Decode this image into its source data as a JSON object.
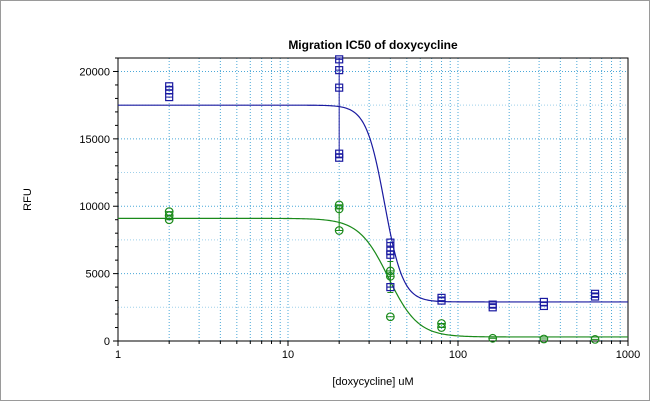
{
  "chart_data": {
    "type": "scatter",
    "title": "Migration IC50 of doxycycline",
    "xlabel": "[doxycycline] uM",
    "ylabel": "RFU",
    "xscale": "log",
    "xlim": [
      1,
      1000
    ],
    "ylim": [
      0,
      21000
    ],
    "x_ticks": [
      1,
      10,
      100,
      1000
    ],
    "x_tick_labels": [
      "1",
      "10",
      "100",
      "1000"
    ],
    "y_ticks": [
      0,
      5000,
      10000,
      15000,
      20000
    ],
    "y_tick_labels": [
      "0",
      "5000",
      "10000",
      "15000",
      "20000"
    ],
    "grid": true,
    "legend": "none",
    "series": [
      {
        "marker": "square",
        "color": "#1a1aa0",
        "points": [
          [
            2,
            18900
          ],
          [
            2,
            18600
          ],
          [
            2,
            18100
          ],
          [
            20,
            20900
          ],
          [
            20,
            20100
          ],
          [
            20,
            18800
          ],
          [
            20,
            13900
          ],
          [
            20,
            13600
          ],
          [
            40,
            7300
          ],
          [
            40,
            6700
          ],
          [
            40,
            6400
          ],
          [
            40,
            4000
          ],
          [
            80,
            3200
          ],
          [
            80,
            3000
          ],
          [
            160,
            2700
          ],
          [
            160,
            2500
          ],
          [
            320,
            2900
          ],
          [
            320,
            2600
          ],
          [
            640,
            3500
          ],
          [
            640,
            3300
          ]
        ],
        "errorbars": [
          [
            20,
            13600,
            21000
          ],
          [
            40,
            4000,
            7300
          ]
        ],
        "fit": {
          "top": 17500,
          "bottom": 2900,
          "ic50": 37,
          "hill": 8
        }
      },
      {
        "marker": "circle",
        "color": "#1a8a1a",
        "points": [
          [
            2,
            9600
          ],
          [
            2,
            9300
          ],
          [
            2,
            9000
          ],
          [
            20,
            10100
          ],
          [
            20,
            9800
          ],
          [
            20,
            8200
          ],
          [
            40,
            5200
          ],
          [
            40,
            4800
          ],
          [
            40,
            1800
          ],
          [
            80,
            1300
          ],
          [
            80,
            1000
          ],
          [
            160,
            200
          ],
          [
            320,
            150
          ],
          [
            640,
            120
          ]
        ],
        "errorbars": [
          [
            20,
            8200,
            10100
          ],
          [
            40,
            3600,
            5900
          ]
        ],
        "fit": {
          "top": 9100,
          "bottom": 300,
          "ic50": 39,
          "hill": 5
        }
      }
    ]
  }
}
